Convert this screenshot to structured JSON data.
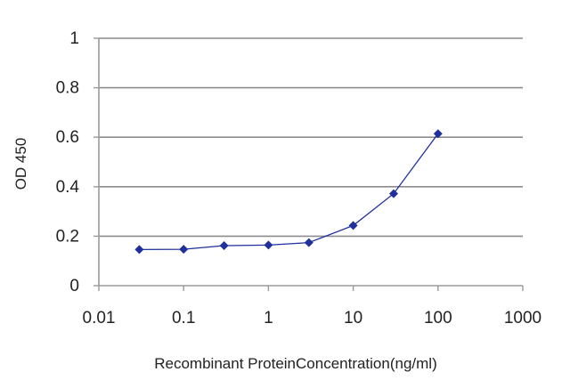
{
  "chart_data": {
    "type": "line",
    "xscale": "log",
    "xlim": [
      0.01,
      1000
    ],
    "ylim": [
      0,
      1
    ],
    "grid": "horizontal",
    "xlabel": "Recombinant ProteinConcentration(ng/ml)",
    "ylabel": "OD 450",
    "x_tick_labels": [
      "0.01",
      "0.1",
      "1",
      "10",
      "100",
      "1000"
    ],
    "y_tick_labels": [
      "0",
      "0.2",
      "0.4",
      "0.6",
      "0.8",
      "1"
    ],
    "series": [
      {
        "x": [
          0.03,
          0.1,
          0.3,
          1,
          3,
          10,
          30,
          100
        ],
        "y": [
          0.146,
          0.147,
          0.162,
          0.164,
          0.174,
          0.243,
          0.372,
          0.614
        ]
      }
    ],
    "colors": {
      "series": "#1f2f9c",
      "grid": "#8c8c8c",
      "axis": "#9a9a9a"
    }
  }
}
